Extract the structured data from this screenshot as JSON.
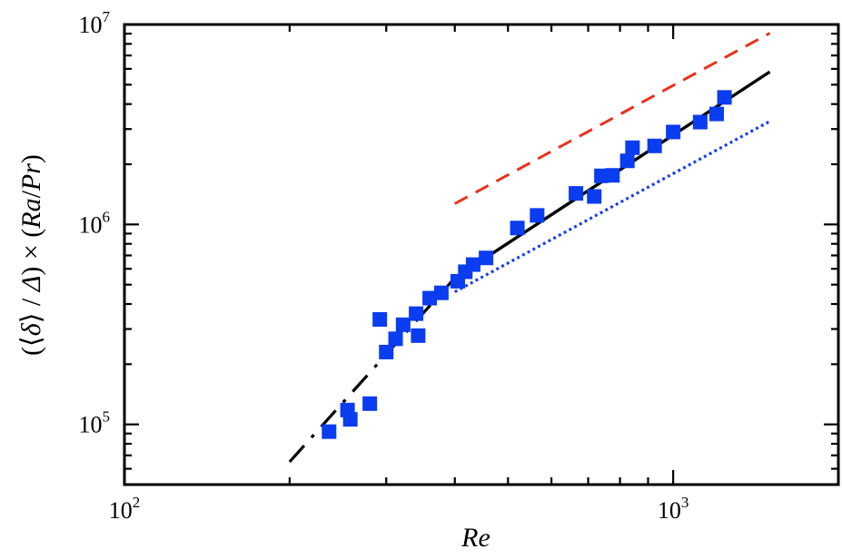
{
  "chart_data": {
    "type": "scatter",
    "title": "",
    "xlabel": "Re",
    "ylabel": {
      "open": "(⟨",
      "delta_small": "δ",
      "mid": "⟩ / ",
      "delta_cap": "Δ",
      "close_times": ") × (",
      "ra": "Ra",
      "slash": "/",
      "pr": "Pr",
      "end": ")"
    },
    "xscale": "log",
    "yscale": "log",
    "xlim": [
      100,
      2000
    ],
    "ylim": [
      50000,
      10000000
    ],
    "x_ticks_major": [
      {
        "value": 100,
        "base": "10",
        "exp": "2"
      },
      {
        "value": 1000,
        "base": "10",
        "exp": "3"
      }
    ],
    "y_ticks_major": [
      {
        "value": 100000,
        "base": "10",
        "exp": "5"
      },
      {
        "value": 1000000,
        "base": "10",
        "exp": "6"
      },
      {
        "value": 10000000,
        "base": "10",
        "exp": "7"
      }
    ],
    "grid": false,
    "legend": "none",
    "marker_color": "#0a3cf0",
    "series": [
      {
        "marker": "square",
        "x": [
          236,
          255,
          258,
          280,
          292,
          300,
          312,
          322,
          340,
          343,
          360,
          378,
          405,
          418,
          432,
          456,
          520,
          565,
          665,
          718,
          740,
          775,
          825,
          843,
          925,
          1000,
          1120,
          1200,
          1240
        ],
        "y": [
          92000,
          118000,
          106000,
          127000,
          335000,
          230000,
          268000,
          315000,
          358000,
          278000,
          428000,
          455000,
          520000,
          580000,
          630000,
          680000,
          960000,
          1110000,
          1430000,
          1380000,
          1750000,
          1760000,
          2080000,
          2420000,
          2470000,
          2900000,
          3250000,
          3570000,
          4320000
        ]
      }
    ],
    "fit_lines": [
      {
        "style": "long-dash-dot",
        "color": "#000000",
        "x": [
          200,
          400
        ],
        "y": [
          65000,
          540000
        ]
      },
      {
        "style": "solid",
        "color": "#000000",
        "x": [
          400,
          1500
        ],
        "y": [
          540000,
          5800000
        ]
      },
      {
        "style": "dashed",
        "color": "#e8321e",
        "x": [
          400,
          1500
        ],
        "y": [
          1270000,
          9050000
        ]
      },
      {
        "style": "dotted",
        "color": "#1a3ff0",
        "x": [
          400,
          1500
        ],
        "y": [
          460000,
          3280000
        ]
      }
    ]
  }
}
